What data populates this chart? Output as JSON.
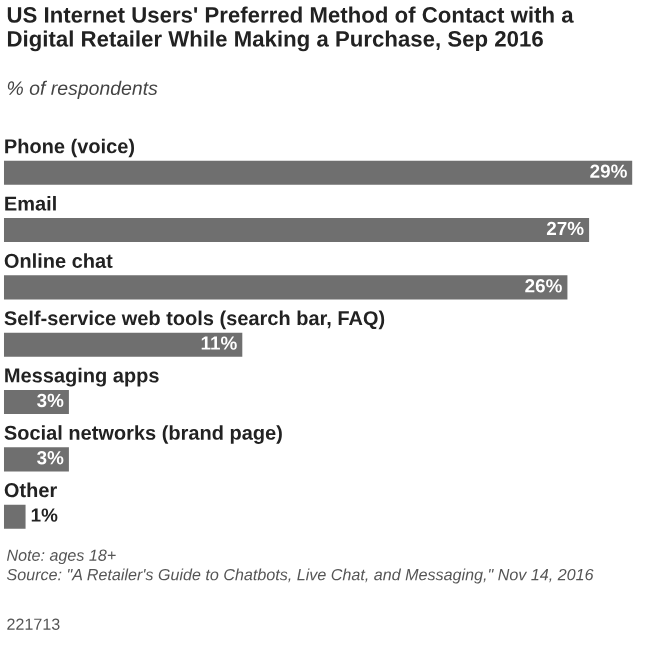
{
  "chart_data": {
    "type": "bar",
    "orientation": "horizontal",
    "title": "US Internet Users' Preferred Method of Contact with a Digital Retailer While Making a Purchase, Sep 2016",
    "subtitle": "% of respondents",
    "categories": [
      "Phone (voice)",
      "Email",
      "Online chat",
      "Self-service web tools (search bar, FAQ)",
      "Messaging apps",
      "Social networks (brand page)",
      "Other"
    ],
    "values": [
      29,
      27,
      26,
      11,
      3,
      3,
      1
    ],
    "value_labels": [
      "29%",
      "27%",
      "26%",
      "11%",
      "3%",
      "3%",
      "1%"
    ],
    "color": "#6f6f6f",
    "annotations": [
      "Note: ages 18+",
      "Source: \"A Retailer's Guide to Chatbots, Live Chat, and Messaging,\" Nov 14, 2016",
      "221713"
    ]
  }
}
